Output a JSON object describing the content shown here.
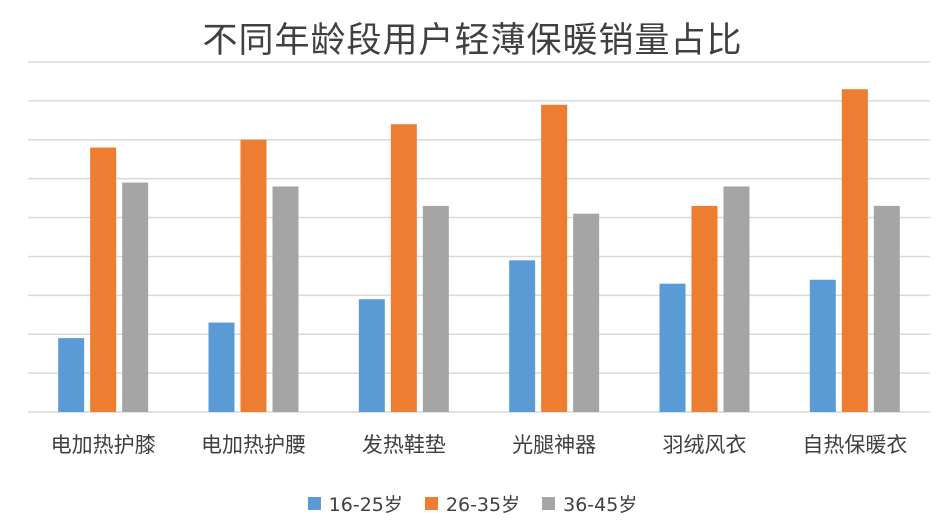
{
  "chart_data": {
    "type": "bar",
    "title": "不同年龄段用户轻薄保暖销量占比",
    "categories": [
      "电加热护膝",
      "电加热护腰",
      "发热鞋垫",
      "光腿神器",
      "羽绒风衣",
      "自热保暖衣"
    ],
    "series": [
      {
        "name": "16-25岁",
        "color": "#5b9bd5",
        "values": [
          1.9,
          2.3,
          2.9,
          3.9,
          3.3,
          3.4
        ]
      },
      {
        "name": "26-35岁",
        "color": "#ed7d31",
        "values": [
          6.8,
          7.0,
          7.4,
          7.9,
          5.3,
          8.3
        ]
      },
      {
        "name": "36-45岁",
        "color": "#a5a5a5",
        "values": [
          5.9,
          5.8,
          5.3,
          5.1,
          5.8,
          5.3
        ]
      }
    ],
    "ylim": [
      0,
      9
    ],
    "gridlines": true,
    "y_axis_labels_shown": false,
    "legend_position": "bottom"
  }
}
